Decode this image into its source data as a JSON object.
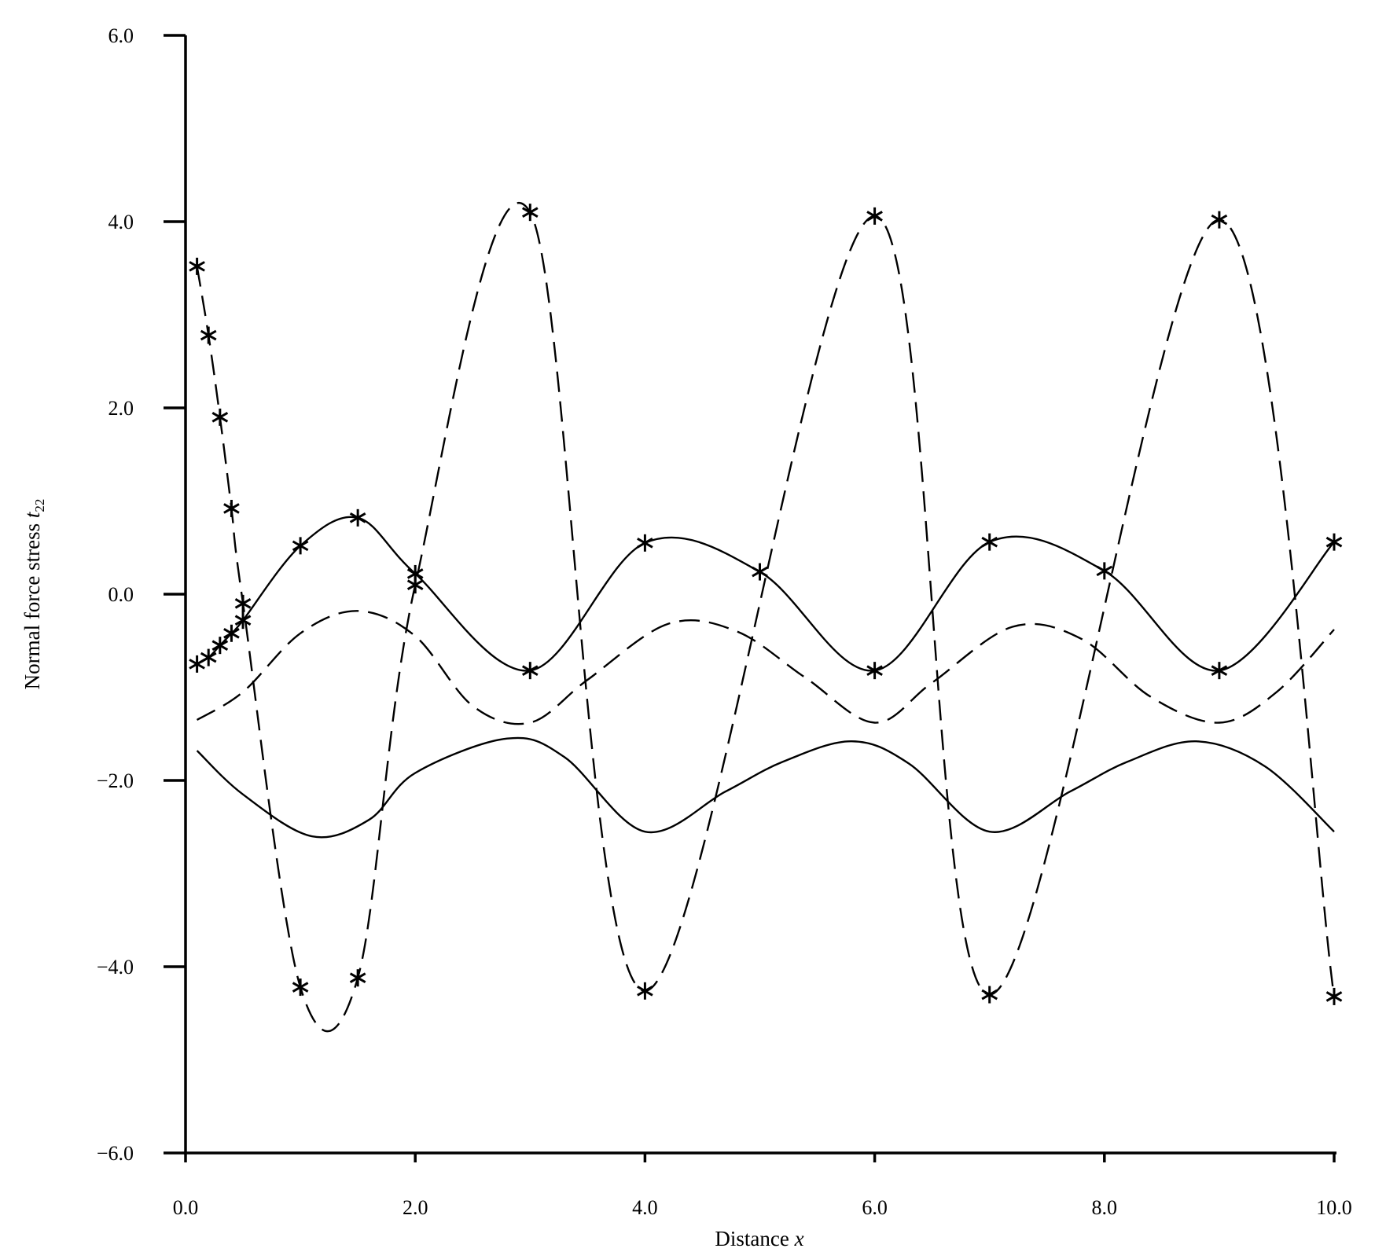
{
  "chart_data": {
    "type": "line",
    "xlabel_text": "Distance",
    "xlabel_var": "x",
    "ylabel_text": "Normal force stress",
    "ylabel_var": "t",
    "ylabel_sub": "22",
    "xlim": [
      0,
      10
    ],
    "ylim": [
      -6,
      6
    ],
    "x_ticks": [
      0,
      2,
      4,
      6,
      8,
      10
    ],
    "x_tick_labels": [
      "0.0",
      "2.0",
      "4.0",
      "6.0",
      "8.0",
      "10.0"
    ],
    "y_ticks": [
      -6,
      -4,
      -2,
      0,
      2,
      4,
      6
    ],
    "y_tick_labels": [
      "−6.0",
      "−4.0",
      "−2.0",
      "0.0",
      "2.0",
      "4.0",
      "6.0"
    ],
    "grid": false,
    "series": [
      {
        "line_style": "solid",
        "marker": "asterisk",
        "x": [
          0.1,
          0.2,
          0.3,
          0.4,
          0.5,
          1.0,
          1.5,
          2.0,
          3.0,
          4.0,
          5.0,
          6.0,
          7.0,
          8.0,
          9.0,
          10.0
        ],
        "y": [
          -0.75,
          -0.68,
          -0.55,
          -0.42,
          -0.28,
          0.52,
          0.82,
          0.22,
          -0.82,
          0.55,
          0.24,
          -0.82,
          0.56,
          0.25,
          -0.82,
          0.56
        ]
      },
      {
        "line_style": "dashed",
        "marker": "asterisk",
        "x": [
          0.1,
          0.2,
          0.3,
          0.4,
          0.5,
          1.0,
          1.5,
          2.0,
          3.0,
          4.0,
          6.0,
          7.0,
          9.0,
          10.0
        ],
        "y": [
          3.52,
          2.78,
          1.9,
          0.92,
          -0.1,
          -4.22,
          -4.12,
          0.1,
          4.1,
          -4.26,
          4.06,
          -4.3,
          4.02,
          -4.32
        ]
      },
      {
        "line_style": "solid",
        "marker": "none",
        "x": [
          0.1,
          0.5,
          1.1,
          1.6,
          2.0,
          2.8,
          3.3,
          4.0,
          4.7,
          5.2,
          5.8,
          6.3,
          7.0,
          7.7,
          8.2,
          8.8,
          9.4,
          10.0
        ],
        "y": [
          -1.68,
          -2.15,
          -2.6,
          -2.42,
          -1.92,
          -1.55,
          -1.75,
          -2.55,
          -2.12,
          -1.8,
          -1.58,
          -1.82,
          -2.55,
          -2.12,
          -1.8,
          -1.58,
          -1.85,
          -2.55
        ]
      },
      {
        "line_style": "dashed",
        "marker": "none",
        "x": [
          0.1,
          0.5,
          1.0,
          1.5,
          2.0,
          2.5,
          3.0,
          3.5,
          4.2,
          4.8,
          5.4,
          6.0,
          6.5,
          7.2,
          7.8,
          8.4,
          9.0,
          9.5,
          10.0
        ],
        "y": [
          -1.35,
          -1.05,
          -0.42,
          -0.18,
          -0.45,
          -1.2,
          -1.38,
          -0.92,
          -0.32,
          -0.4,
          -0.9,
          -1.38,
          -0.95,
          -0.35,
          -0.48,
          -1.1,
          -1.38,
          -1.05,
          -0.38
        ]
      }
    ]
  }
}
